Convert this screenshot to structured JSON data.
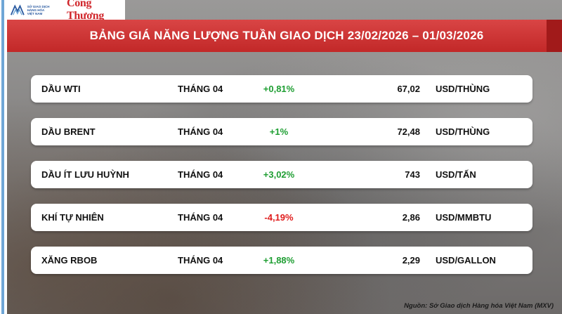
{
  "logo": {
    "org_line1": "SỞ GIAO DỊCH",
    "org_line2": "HÀNG HÓA",
    "org_line3": "VIỆT NAM",
    "brand": "Công Thương"
  },
  "title": "BẢNG GIÁ NĂNG LƯỢNG TUẦN GIAO DỊCH 23/02/2026 – 01/03/2026",
  "rows": [
    {
      "name": "DẦU WTI",
      "month": "THÁNG 04",
      "change": "+0,81%",
      "direction": "up",
      "price": "67,02",
      "unit": "USD/THÙNG"
    },
    {
      "name": "DẦU BRENT",
      "month": "THÁNG 04",
      "change": "+1%",
      "direction": "up",
      "price": "72,48",
      "unit": "USD/THÙNG"
    },
    {
      "name": "DẦU ÍT LƯU HUỲNH",
      "month": "THÁNG 04",
      "change": "+3,02%",
      "direction": "up",
      "price": "743",
      "unit": "USD/TẤN"
    },
    {
      "name": "KHÍ TỰ NHIÊN",
      "month": "THÁNG 04",
      "change": "-4,19%",
      "direction": "down",
      "price": "2,86",
      "unit": "USD/MMBTU"
    },
    {
      "name": "XĂNG RBOB",
      "month": "THÁNG 04",
      "change": "+1,88%",
      "direction": "up",
      "price": "2,29",
      "unit": "USD/GALLON"
    }
  ],
  "source": "Nguồn: Sở Giao dịch Hàng hóa Việt Nam (MXV)",
  "colors": {
    "banner": "#c22828",
    "positive": "#1e9e32",
    "negative": "#e01c1c"
  }
}
